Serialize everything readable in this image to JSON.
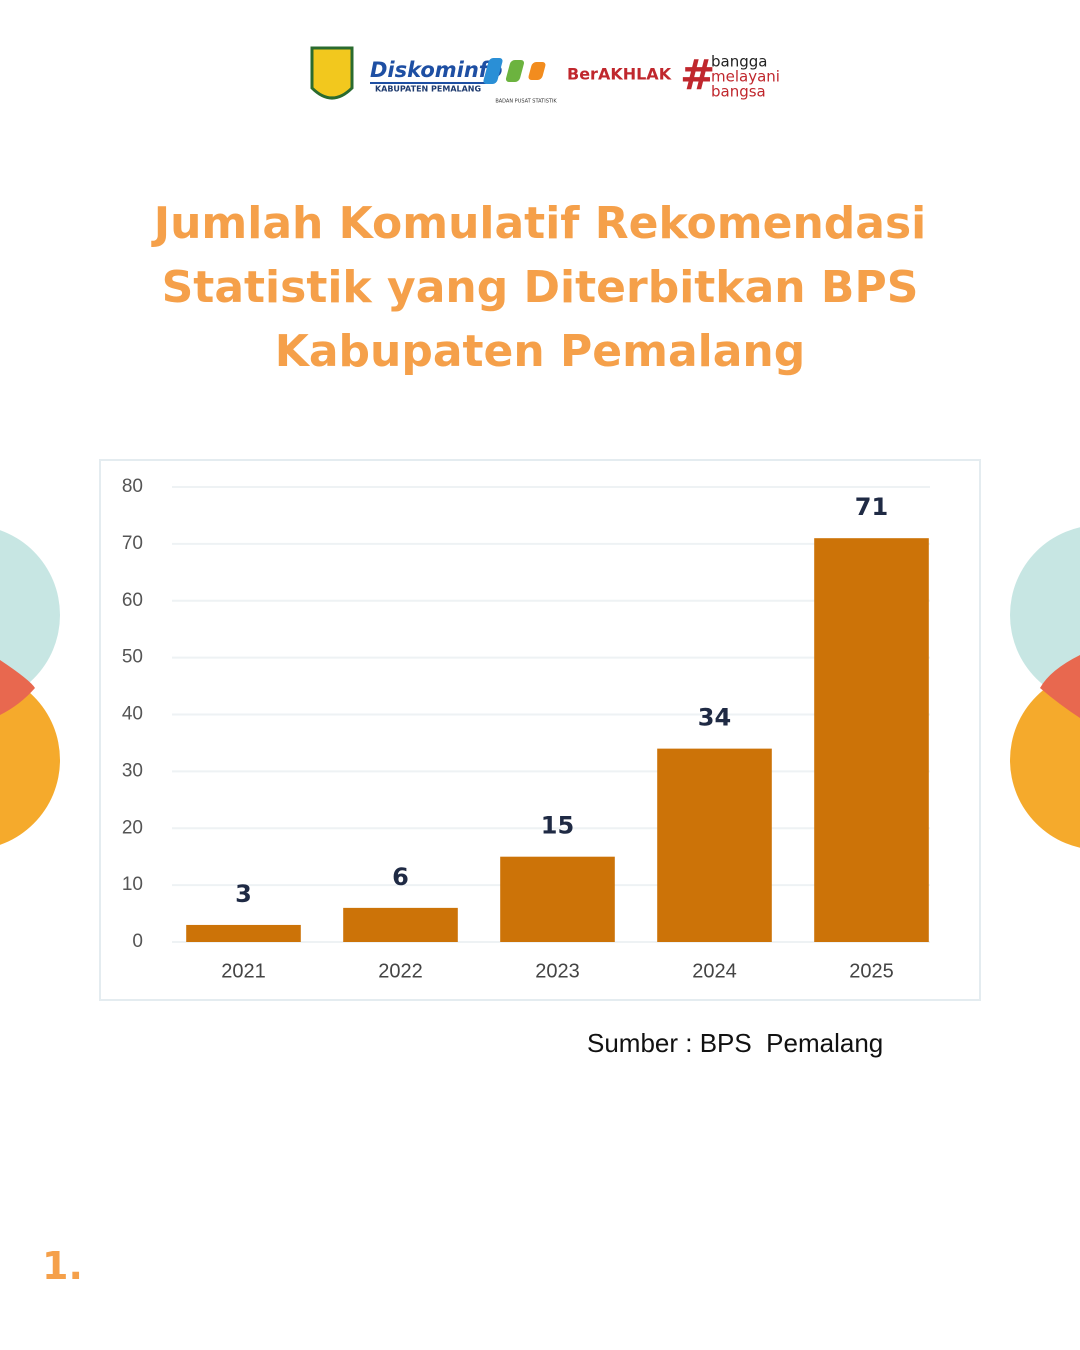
{
  "logos": {
    "diskominfo": "Diskominfo",
    "diskominfo_sub": "KABUPATEN PEMALANG",
    "bps": "BADAN PUSAT STATISTIK",
    "berakhlak": "BerAKHLAK",
    "bangga": [
      "bangga",
      "melayani",
      "bangsa"
    ]
  },
  "chart_data": {
    "type": "bar",
    "title": "Jumlah Komulatif Rekomendasi Statistik yang Diterbitkan BPS Kabupaten Pemalang",
    "categories": [
      "2021",
      "2022",
      "2023",
      "2024",
      "2025"
    ],
    "values": [
      3,
      6,
      15,
      34,
      71
    ],
    "color": "#cc7308",
    "ylim": [
      0,
      80
    ],
    "yticks": [
      0,
      10,
      20,
      30,
      40,
      50,
      60,
      70,
      80
    ],
    "grid": true
  },
  "source": "Sumber : BPS  Pemalang",
  "page_number": "1."
}
